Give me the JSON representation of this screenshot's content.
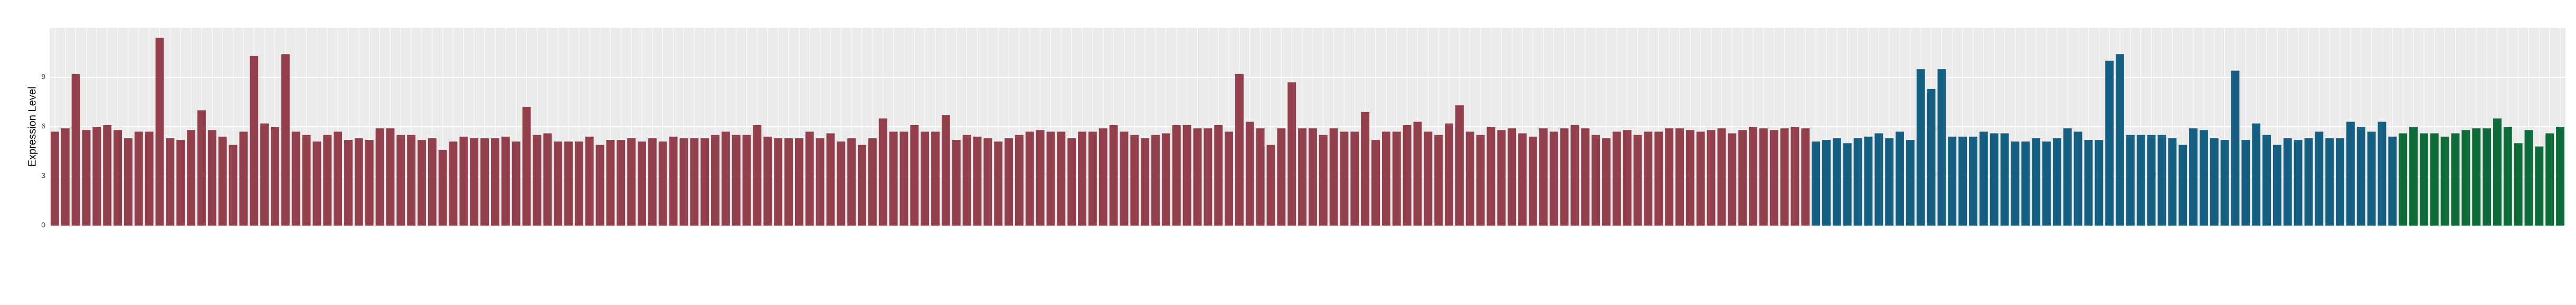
{
  "chart_data": {
    "type": "bar",
    "y_label": "Expression Level",
    "ylim": [
      0,
      12
    ],
    "yticks": [
      0,
      3,
      6,
      9
    ],
    "grid": true,
    "series": [
      {
        "color": "#94404c",
        "values": [
          5.7,
          5.9,
          9.2,
          5.8,
          6.0,
          6.1,
          5.8,
          5.3,
          5.7,
          5.7,
          11.4,
          5.3,
          5.2,
          5.8,
          7.0,
          5.8,
          5.4,
          4.9,
          5.7,
          10.3,
          6.2,
          6.0,
          10.4,
          5.7,
          5.5,
          5.1,
          5.5,
          5.7,
          5.2,
          5.3,
          5.2,
          5.9,
          5.9,
          5.5,
          5.5,
          5.2,
          5.3,
          4.6,
          5.1,
          5.4,
          5.3,
          5.3,
          5.3,
          5.4,
          5.1,
          7.2,
          5.5,
          5.6,
          5.1,
          5.1,
          5.1,
          5.4,
          4.9,
          5.2,
          5.2,
          5.3,
          5.1,
          5.3,
          5.1,
          5.4,
          5.3,
          5.3,
          5.3,
          5.5,
          5.7,
          5.5,
          5.5,
          6.1,
          5.4,
          5.3,
          5.3,
          5.3,
          5.7,
          5.3,
          5.6,
          5.1,
          5.3,
          4.9,
          5.3,
          6.5,
          5.7,
          5.7,
          6.1,
          5.7,
          5.7,
          6.7,
          5.2,
          5.5,
          5.4,
          5.3,
          5.1,
          5.3,
          5.5,
          5.7,
          5.8,
          5.7,
          5.7,
          5.3,
          5.7,
          5.7,
          5.9,
          6.1,
          5.7,
          5.5,
          5.3,
          5.5,
          5.6,
          6.1,
          6.1,
          5.9,
          5.9,
          6.1,
          5.7,
          9.2,
          6.3,
          5.9,
          4.9,
          5.9,
          8.7,
          5.9,
          5.9,
          5.5,
          5.9,
          5.7,
          5.7,
          6.9,
          5.2,
          5.7,
          5.7,
          6.1,
          6.3,
          5.7,
          5.5,
          6.2,
          7.3,
          5.7,
          5.5,
          6.0,
          5.8,
          5.9,
          5.6,
          5.4,
          5.9,
          5.7,
          5.9,
          6.1,
          5.9,
          5.5,
          5.3,
          5.7,
          5.8,
          5.5,
          5.7,
          5.7,
          5.9,
          5.9,
          5.8,
          5.7,
          5.8,
          5.9,
          5.6,
          5.8,
          6.0,
          5.9,
          5.8,
          5.9,
          6.0,
          5.9
        ]
      },
      {
        "color": "#156082",
        "values": [
          5.1,
          5.2,
          5.3,
          5.0,
          5.3,
          5.4,
          5.6,
          5.3,
          5.7,
          5.2,
          9.5,
          8.3,
          9.5,
          5.4,
          5.4,
          5.4,
          5.7,
          5.6,
          5.6,
          5.1,
          5.1,
          5.3,
          5.1,
          5.3,
          5.9,
          5.7,
          5.2,
          5.2,
          10.0,
          10.4,
          5.5,
          5.5,
          5.5,
          5.5,
          5.3,
          4.9,
          5.9,
          5.8,
          5.3,
          5.2,
          9.4,
          5.2,
          6.2,
          5.5,
          4.9,
          5.3,
          5.2,
          5.3,
          5.7,
          5.3,
          5.3,
          6.3,
          6.0,
          5.7,
          6.3,
          5.4
        ]
      },
      {
        "color": "#0e6b3a",
        "values": [
          5.6,
          6.0,
          5.6,
          5.6,
          5.4,
          5.6,
          5.8,
          5.9,
          5.9,
          6.5,
          6.0,
          5.0,
          5.8,
          4.8,
          5.6,
          6.0
        ]
      }
    ]
  }
}
